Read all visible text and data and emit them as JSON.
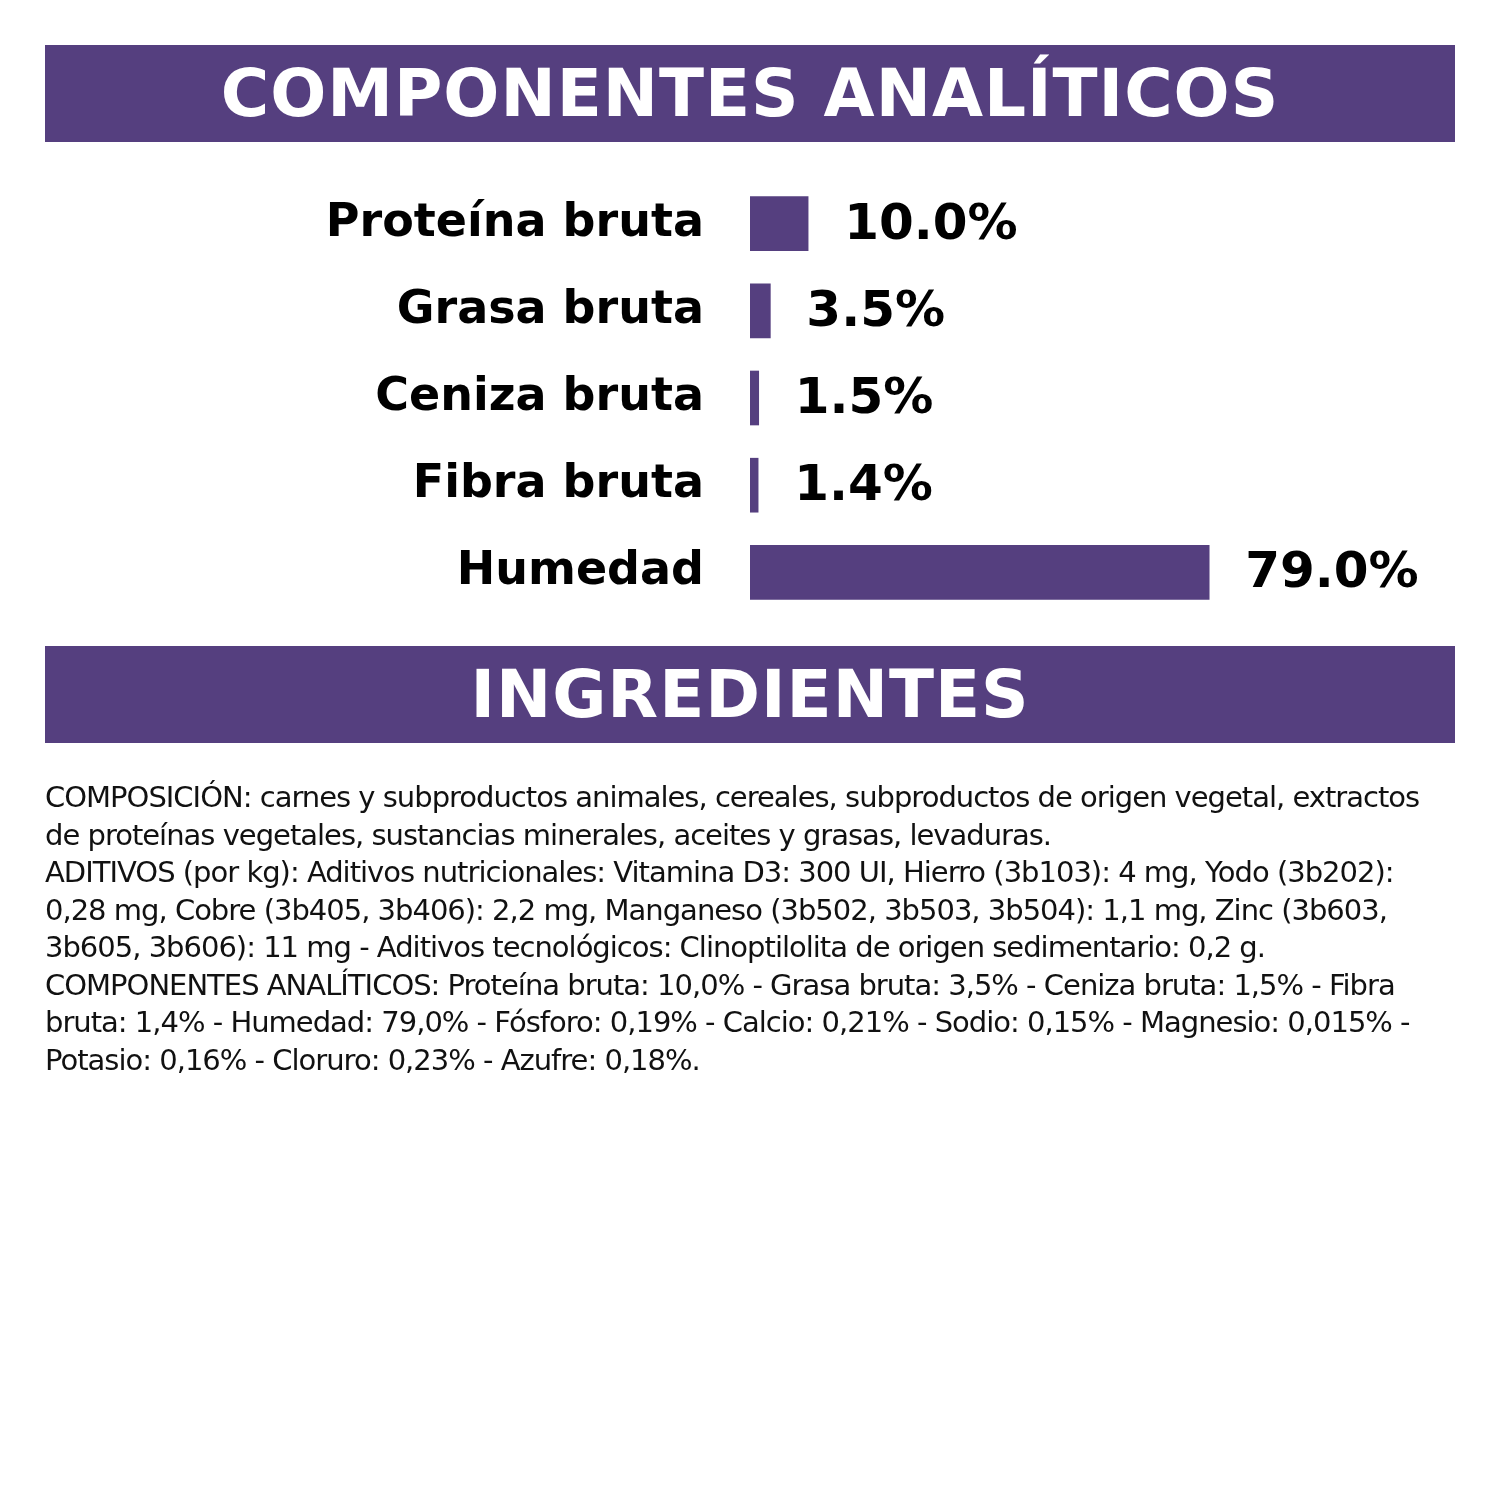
{
  "chart_data": {
    "type": "bar",
    "orientation": "horizontal",
    "title": "COMPONENTES ANALÍTICOS",
    "categories": [
      "Proteína bruta",
      "Grasa bruta",
      "Ceniza bruta",
      "Fibra bruta",
      "Humedad"
    ],
    "values": [
      10.0,
      3.5,
      1.5,
      1.4,
      79.0
    ],
    "value_labels": [
      "10.0%",
      "3.5%",
      "1.5%",
      "1.4%",
      "79.0%"
    ],
    "color": "#553f7f",
    "tick_labels": "y",
    "grid": false,
    "legend": false,
    "annotations": [
      "INGREDIENTES",
      "COMPOSICIÓN: carnes y subproductos animales, cereales, subproductos de origen vegetal, extractos de proteínas vegetales, sustancias minerales, aceites y grasas, levaduras.",
      "ADITIVOS (por kg): Aditivos nutricionales: Vitamina D3: 300 UI, Hierro (3b103): 4 mg, Yodo (3b202): 0,28 mg, Cobre (3b405, 3b406): 2,2 mg, Manganeso (3b502, 3b503, 3b504): 1,1 mg, Zinc (3b603, 3b605, 3b606): 11 mg - Aditivos tecnológicos: Clinoptilolita de origen sedimentario: 0,2 g.",
      "COMPONENTES ANALÍTICOS: Proteína bruta: 10,0% - Grasa bruta: 3,5% - Ceniza bruta: 1,5% - Fibra bruta: 1,4% - Humedad: 79,0% - Fósforo: 0,19% - Calcio: 0,21% - Sodio: 0,15% - Magnesio: 0,015% - Potasio: 0,16% - Cloruro: 0,23% - Azufre: 0,18%."
    ]
  }
}
